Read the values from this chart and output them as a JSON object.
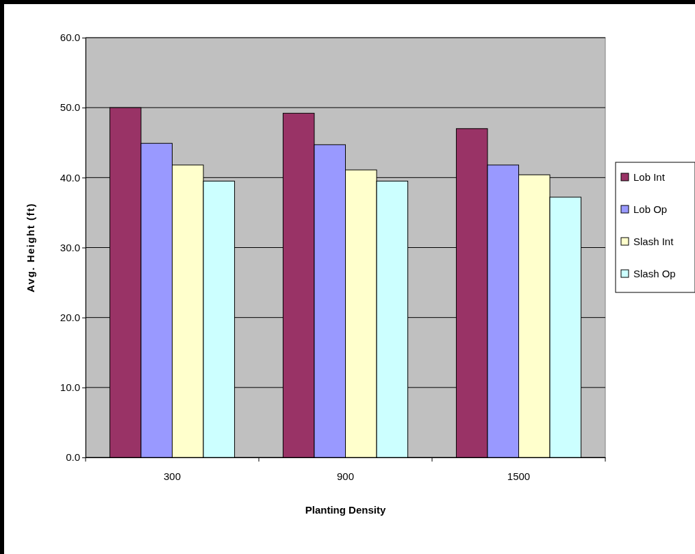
{
  "chart_data": {
    "type": "bar",
    "xlabel": "Planting Density",
    "ylabel": "Avg. Height (ft)",
    "categories": [
      "300",
      "900",
      "1500"
    ],
    "series": [
      {
        "name": "Lob Int",
        "color": "#993366",
        "values": [
          50.0,
          49.2,
          47.0
        ]
      },
      {
        "name": "Lob Op",
        "color": "#9999ff",
        "values": [
          44.9,
          44.7,
          41.8
        ]
      },
      {
        "name": "Slash Int",
        "color": "#ffffcc",
        "values": [
          41.8,
          41.1,
          40.4
        ]
      },
      {
        "name": "Slash Op",
        "color": "#ccffff",
        "values": [
          39.5,
          39.5,
          37.2
        ]
      }
    ],
    "ylim": [
      0,
      60
    ],
    "yticks": [
      {
        "value": 0,
        "label": "0.0"
      },
      {
        "value": 10,
        "label": "10.0"
      },
      {
        "value": 20,
        "label": "20.0"
      },
      {
        "value": 30,
        "label": "30.0"
      },
      {
        "value": 40,
        "label": "40.0"
      },
      {
        "value": 50,
        "label": "50.0"
      },
      {
        "value": 60,
        "label": "60.0"
      }
    ],
    "grid": "y",
    "legend": "right"
  }
}
